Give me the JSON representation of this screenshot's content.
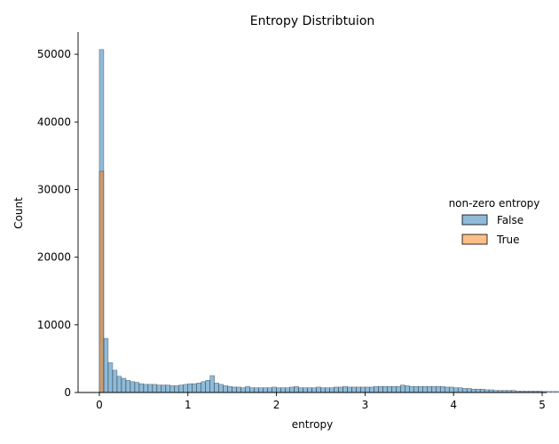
{
  "chart_data": {
    "type": "bar",
    "title": "Entropy Distribtuion",
    "xlabel": "entropy",
    "ylabel": "Count",
    "xlim": [
      -0.24,
      5.05
    ],
    "ylim": [
      0,
      53300
    ],
    "xticks": [
      0,
      1,
      2,
      3,
      4,
      5
    ],
    "yticks": [
      0,
      10000,
      20000,
      30000,
      40000,
      50000
    ],
    "grid": false,
    "bin_width": 0.05,
    "legend": {
      "title": "non-zero entropy",
      "placement": "right",
      "entries": [
        "False",
        "True"
      ]
    },
    "series": [
      {
        "name": "False",
        "color": "#1f77b4",
        "x_start": 0.0,
        "values": [
          50700,
          8000,
          4400,
          3300,
          2400,
          2100,
          1800,
          1600,
          1500,
          1300,
          1200,
          1200,
          1200,
          1100,
          1100,
          1100,
          1000,
          1000,
          1100,
          1200,
          1300,
          1300,
          1400,
          1600,
          1800,
          2500,
          1400,
          1200,
          1000,
          900,
          800,
          800,
          700,
          900,
          700,
          700,
          700,
          700,
          700,
          800,
          700,
          700,
          700,
          800,
          900,
          700,
          700,
          700,
          700,
          800,
          700,
          700,
          700,
          800,
          800,
          900,
          800,
          800,
          800,
          800,
          800,
          800,
          900,
          900,
          900,
          900,
          900,
          900,
          1100,
          1000,
          900,
          900,
          900,
          900,
          900,
          900,
          900,
          900,
          800,
          800,
          700,
          700,
          600,
          600,
          500,
          500,
          500,
          400,
          400,
          300,
          300,
          300,
          300,
          300,
          200,
          200,
          200,
          200,
          200,
          200,
          150,
          150,
          150,
          150,
          150,
          150,
          120,
          100,
          100,
          100,
          80,
          80,
          70,
          60,
          60,
          50,
          50,
          40,
          40,
          30,
          30,
          20,
          20,
          20,
          10,
          10,
          10,
          5,
          5,
          5,
          5,
          5,
          5,
          5,
          5,
          5,
          3,
          2,
          2,
          2
        ]
      },
      {
        "name": "True",
        "color": "#ff7f0e",
        "x_start": 0.0,
        "values": [
          32700
        ]
      }
    ]
  }
}
